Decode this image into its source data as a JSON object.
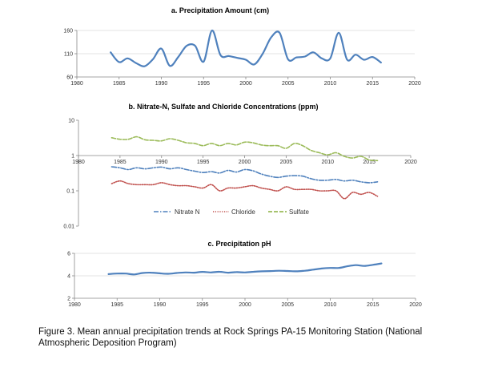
{
  "caption": "Figure 3.  Mean annual precipitation trends at Rock Springs PA-15 Monitoring Station (National Atmospheric Deposition Program)",
  "chart_data": [
    {
      "type": "line",
      "title": "a. Precipitation Amount (cm)",
      "xlim": [
        1980,
        2020
      ],
      "xticks": [
        1980,
        1985,
        1990,
        1995,
        2000,
        2005,
        2010,
        2015,
        2020
      ],
      "ylim": [
        60,
        160
      ],
      "yticks": [
        60,
        110,
        160
      ],
      "grid": true,
      "series": [
        {
          "color": "#4f81bd",
          "style": "solid",
          "x": [
            1984,
            1985,
            1986,
            1987,
            1988,
            1989,
            1990,
            1991,
            1992,
            1993,
            1994,
            1995,
            1996,
            1997,
            1998,
            1999,
            2000,
            2001,
            2002,
            2003,
            2004,
            2005,
            2006,
            2007,
            2008,
            2009,
            2010,
            2011,
            2012,
            2013,
            2014,
            2015,
            2016
          ],
          "y": [
            113,
            92,
            100,
            90,
            83,
            98,
            121,
            84,
            103,
            127,
            127,
            93,
            160,
            107,
            105,
            101,
            97,
            87,
            110,
            145,
            155,
            98,
            102,
            104,
            113,
            100,
            100,
            155,
            97,
            108,
            97,
            103,
            91
          ]
        }
      ]
    },
    {
      "type": "line",
      "title": "b. Nitrate-N, Sulfate and Chloride Concentrations (ppm)",
      "xlim": [
        1980,
        2020
      ],
      "xticks": [
        1980,
        1985,
        1990,
        1995,
        2000,
        2005,
        2010,
        2015,
        2020
      ],
      "ylim": [
        0.01,
        10
      ],
      "yticks": [
        0.01,
        0.1,
        1,
        10
      ],
      "yscale": "log",
      "grid": false,
      "legend_position": "bottom",
      "series": [
        {
          "name": "Nitrate N",
          "color": "#4f81bd",
          "style": "dash-dot",
          "x": [
            1984,
            1985,
            1986,
            1987,
            1988,
            1989,
            1990,
            1991,
            1992,
            1993,
            1994,
            1995,
            1996,
            1997,
            1998,
            1999,
            2000,
            2001,
            2002,
            2003,
            2004,
            2005,
            2006,
            2007,
            2008,
            2009,
            2010,
            2011,
            2012,
            2013,
            2014,
            2015,
            2016
          ],
          "y": [
            0.48,
            0.45,
            0.4,
            0.45,
            0.42,
            0.45,
            0.47,
            0.42,
            0.45,
            0.4,
            0.36,
            0.33,
            0.35,
            0.32,
            0.38,
            0.34,
            0.4,
            0.37,
            0.3,
            0.26,
            0.24,
            0.26,
            0.27,
            0.26,
            0.22,
            0.2,
            0.2,
            0.21,
            0.19,
            0.2,
            0.18,
            0.17,
            0.18
          ]
        },
        {
          "name": "Chloride",
          "color": "#c0504d",
          "style": "dotted",
          "x": [
            1984,
            1985,
            1986,
            1987,
            1988,
            1989,
            1990,
            1991,
            1992,
            1993,
            1994,
            1995,
            1996,
            1997,
            1998,
            1999,
            2000,
            2001,
            2002,
            2003,
            2004,
            2005,
            2006,
            2007,
            2008,
            2009,
            2010,
            2011,
            2012,
            2013,
            2014,
            2015,
            2016
          ],
          "y": [
            0.16,
            0.19,
            0.16,
            0.15,
            0.15,
            0.15,
            0.17,
            0.15,
            0.14,
            0.14,
            0.13,
            0.12,
            0.15,
            0.1,
            0.12,
            0.12,
            0.13,
            0.14,
            0.12,
            0.11,
            0.1,
            0.13,
            0.11,
            0.11,
            0.11,
            0.1,
            0.1,
            0.1,
            0.06,
            0.09,
            0.08,
            0.09,
            0.07
          ]
        },
        {
          "name": "Sulfate",
          "color": "#9bbb59",
          "style": "dashed",
          "x": [
            1984,
            1985,
            1986,
            1987,
            1988,
            1989,
            1990,
            1991,
            1992,
            1993,
            1994,
            1995,
            1996,
            1997,
            1998,
            1999,
            2000,
            2001,
            2002,
            2003,
            2004,
            2005,
            2006,
            2007,
            2008,
            2009,
            2010,
            2011,
            2012,
            2013,
            2014,
            2015,
            2016
          ],
          "y": [
            3.2,
            2.9,
            2.9,
            3.4,
            2.8,
            2.7,
            2.6,
            3.0,
            2.7,
            2.3,
            2.2,
            1.9,
            2.2,
            1.9,
            2.2,
            2.0,
            2.4,
            2.3,
            2.0,
            1.9,
            1.9,
            1.6,
            2.2,
            1.9,
            1.4,
            1.2,
            1.05,
            1.2,
            0.95,
            0.85,
            0.95,
            0.75,
            0.72
          ]
        }
      ]
    },
    {
      "type": "line",
      "title": "c. Precipitation pH",
      "xlim": [
        1980,
        2020
      ],
      "xticks": [
        1980,
        1985,
        1990,
        1995,
        2000,
        2005,
        2010,
        2015,
        2020
      ],
      "ylim": [
        2,
        6
      ],
      "yticks": [
        2,
        4,
        6
      ],
      "grid": true,
      "series": [
        {
          "color": "#4f81bd",
          "style": "solid",
          "x": [
            1984,
            1985,
            1986,
            1987,
            1988,
            1989,
            1990,
            1991,
            1992,
            1993,
            1994,
            1995,
            1996,
            1997,
            1998,
            1999,
            2000,
            2001,
            2002,
            2003,
            2004,
            2005,
            2006,
            2007,
            2008,
            2009,
            2010,
            2011,
            2012,
            2013,
            2014,
            2015,
            2016
          ],
          "y": [
            4.15,
            4.2,
            4.2,
            4.12,
            4.25,
            4.28,
            4.22,
            4.18,
            4.25,
            4.3,
            4.28,
            4.35,
            4.3,
            4.36,
            4.28,
            4.33,
            4.3,
            4.36,
            4.4,
            4.42,
            4.45,
            4.43,
            4.4,
            4.45,
            4.55,
            4.65,
            4.7,
            4.7,
            4.85,
            4.95,
            4.88,
            4.98,
            5.1
          ]
        }
      ]
    }
  ]
}
